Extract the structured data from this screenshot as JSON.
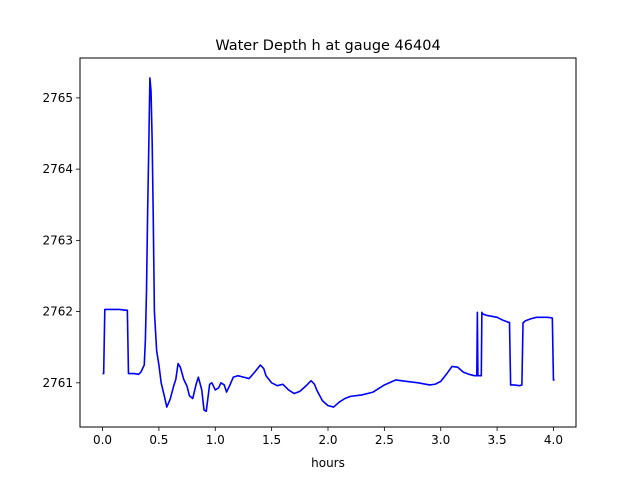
{
  "chart_data": {
    "type": "line",
    "title": "Water Depth h at gauge 46404",
    "xlabel": "hours",
    "ylabel": "",
    "xlim": [
      -0.2,
      4.2
    ],
    "ylim": [
      2760.38,
      2765.56
    ],
    "xticks": [
      0.0,
      0.5,
      1.0,
      1.5,
      2.0,
      2.5,
      3.0,
      3.5,
      4.0
    ],
    "xtick_labels": [
      "0.0",
      "0.5",
      "1.0",
      "1.5",
      "2.0",
      "2.5",
      "3.0",
      "3.5",
      "4.0"
    ],
    "yticks": [
      2761,
      2762,
      2763,
      2764,
      2765
    ],
    "ytick_labels": [
      "2761",
      "2762",
      "2763",
      "2764",
      "2765"
    ],
    "grid": false,
    "series": [
      {
        "color": "#0000ff",
        "x": [
          0.0,
          0.01,
          0.02,
          0.05,
          0.1,
          0.15,
          0.2,
          0.22,
          0.23,
          0.28,
          0.32,
          0.34,
          0.37,
          0.38,
          0.39,
          0.4,
          0.41,
          0.42,
          0.43,
          0.44,
          0.45,
          0.46,
          0.48,
          0.5,
          0.52,
          0.55,
          0.57,
          0.6,
          0.63,
          0.65,
          0.67,
          0.69,
          0.72,
          0.75,
          0.77,
          0.8,
          0.83,
          0.85,
          0.88,
          0.9,
          0.92,
          0.95,
          0.97,
          1.0,
          1.03,
          1.05,
          1.08,
          1.1,
          1.13,
          1.16,
          1.2,
          1.25,
          1.3,
          1.35,
          1.4,
          1.43,
          1.45,
          1.5,
          1.55,
          1.6,
          1.65,
          1.7,
          1.75,
          1.8,
          1.85,
          1.88,
          1.9,
          1.95,
          2.0,
          2.05,
          2.1,
          2.15,
          2.2,
          2.3,
          2.4,
          2.5,
          2.6,
          2.7,
          2.8,
          2.9,
          2.95,
          3.0,
          3.05,
          3.1,
          3.15,
          3.2,
          3.25,
          3.3,
          3.32,
          3.325,
          3.33,
          3.35,
          3.36,
          3.365,
          3.37,
          3.4,
          3.5,
          3.55,
          3.6,
          3.61,
          3.62,
          3.65,
          3.7,
          3.72,
          3.73,
          3.75,
          3.8,
          3.85,
          3.9,
          3.95,
          3.99,
          4.0,
          4.01
        ],
        "y": [
          2761.13,
          2761.13,
          2762.03,
          2762.03,
          2762.03,
          2762.03,
          2762.02,
          2762.02,
          2761.13,
          2761.13,
          2761.12,
          2761.15,
          2761.25,
          2761.6,
          2762.3,
          2763.4,
          2764.3,
          2765.28,
          2765.1,
          2764.4,
          2763.3,
          2762.0,
          2761.45,
          2761.25,
          2761.0,
          2760.8,
          2760.66,
          2760.77,
          2760.95,
          2761.05,
          2761.27,
          2761.22,
          2761.05,
          2760.95,
          2760.82,
          2760.78,
          2760.98,
          2761.08,
          2760.9,
          2760.62,
          2760.6,
          2760.98,
          2761.0,
          2760.9,
          2760.93,
          2761.0,
          2760.97,
          2760.87,
          2760.97,
          2761.08,
          2761.1,
          2761.08,
          2761.06,
          2761.15,
          2761.25,
          2761.2,
          2761.1,
          2761.0,
          2760.96,
          2760.98,
          2760.9,
          2760.85,
          2760.88,
          2760.95,
          2761.03,
          2760.98,
          2760.9,
          2760.75,
          2760.68,
          2760.66,
          2760.73,
          2760.78,
          2760.81,
          2760.83,
          2760.87,
          2760.97,
          2761.04,
          2761.02,
          2761.0,
          2760.97,
          2760.98,
          2761.02,
          2761.12,
          2761.23,
          2761.22,
          2761.15,
          2761.12,
          2761.1,
          2761.1,
          2761.99,
          2761.1,
          2761.1,
          2761.1,
          2761.99,
          2761.97,
          2761.95,
          2761.92,
          2761.88,
          2761.85,
          2761.85,
          2760.97,
          2760.97,
          2760.96,
          2760.97,
          2761.84,
          2761.87,
          2761.9,
          2761.92,
          2761.92,
          2761.92,
          2761.91,
          2761.04,
          2761.04
        ]
      }
    ]
  }
}
